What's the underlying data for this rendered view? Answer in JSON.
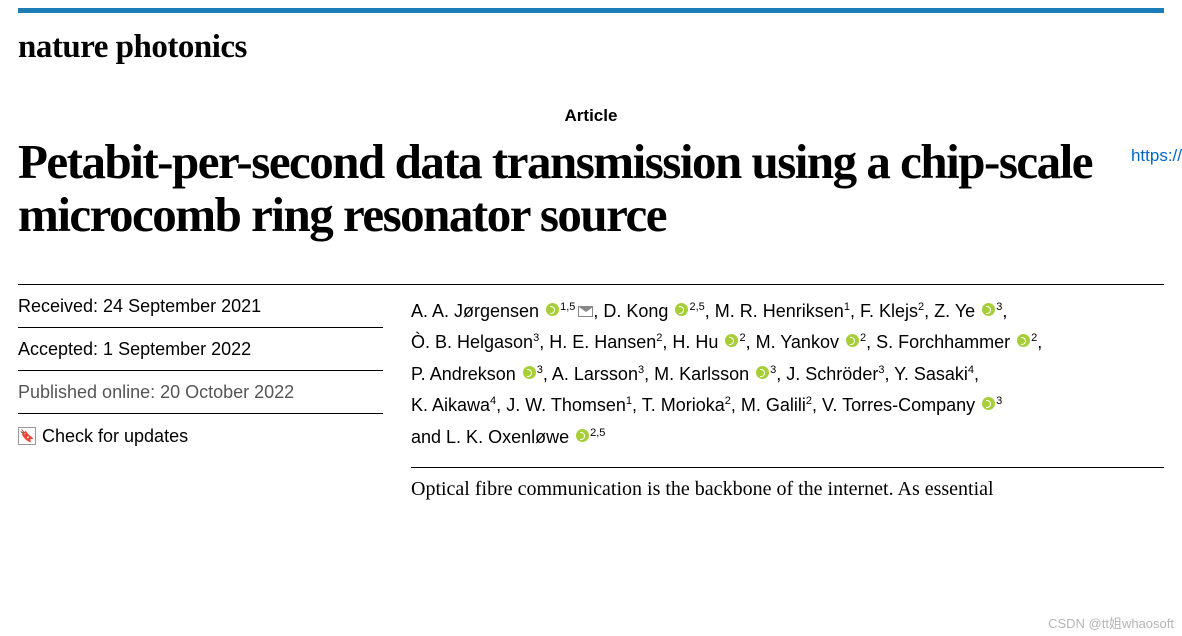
{
  "colors": {
    "top_rule": "#1b7db6",
    "link": "#0066cc",
    "orcid": "#a6ce39",
    "text": "#000000",
    "muted": "#555555",
    "background": "#ffffff"
  },
  "journal": "nature photonics",
  "article_label": "Article",
  "link_text": "https://",
  "title": "Petabit-per-second data transmission using a chip-scale microcomb ring resonator source",
  "dates": {
    "received": "Received: 24 September 2021",
    "accepted": "Accepted: 1 September 2022",
    "published": "Published online: 20 October 2022"
  },
  "check_updates": "Check for updates",
  "authors": {
    "line1_a": "A. A. Jørgensen",
    "line1_a_aff": "1,5",
    "line1_b": "D. Kong",
    "line1_b_aff": "2,5",
    "line1_c": "M. R. Henriksen",
    "line1_c_aff": "1",
    "line1_d": "F. Klejs",
    "line1_d_aff": "2",
    "line1_e": "Z. Ye",
    "line1_e_aff": "3",
    "line2_a": "Ò. B. Helgason",
    "line2_a_aff": "3",
    "line2_b": "H. E. Hansen",
    "line2_b_aff": "2",
    "line2_c": "H. Hu",
    "line2_c_aff": "2",
    "line2_d": "M. Yankov",
    "line2_d_aff": "2",
    "line2_e": "S. Forchhammer",
    "line2_e_aff": "2",
    "line3_a": "P. Andrekson",
    "line3_a_aff": "3",
    "line3_b": "A. Larsson",
    "line3_b_aff": "3",
    "line3_c": "M. Karlsson",
    "line3_c_aff": "3",
    "line3_d": "J. Schröder",
    "line3_d_aff": "3",
    "line3_e": "Y. Sasaki",
    "line3_e_aff": "4",
    "line4_a": "K. Aikawa",
    "line4_a_aff": "4",
    "line4_b": "J. W. Thomsen",
    "line4_b_aff": "1",
    "line4_c": "T. Morioka",
    "line4_c_aff": "2",
    "line4_d": "M. Galili",
    "line4_d_aff": "2",
    "line4_e": "V. Torres-Company",
    "line4_e_aff": "3",
    "line5_a": "L. K. Oxenløwe",
    "line5_a_aff": "2,5",
    "and": "and "
  },
  "abstract_first": "Optical fibre communication is the backbone of the internet. As essential",
  "watermark": "CSDN @tt姐whaosoft"
}
